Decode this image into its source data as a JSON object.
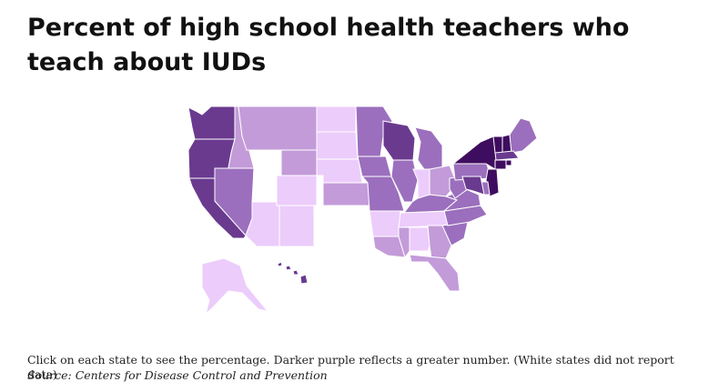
{
  "title": "Percent of high school health teachers who teach about IUDs",
  "note": "Click on each state to see the percentage. Darker purple reflects a greater number. (White states did not report data)",
  "source": "Source: Centers for Disease Control and Prevention",
  "colors": {
    "no_data": "#ffffff",
    "level1": "#ecccfb",
    "level2": "#c39bd9",
    "level3": "#9b6fbd",
    "level4": "#6a3a8f",
    "level5": "#3f0d5f",
    "border": "#ffffff"
  },
  "legend_levels": [
    {
      "level": "no_data"
    },
    {
      "level": "level1"
    },
    {
      "level": "level2"
    },
    {
      "level": "level3"
    },
    {
      "level": "level4"
    },
    {
      "level": "level5"
    }
  ],
  "states": [
    {
      "id": "WA",
      "level": "level4"
    },
    {
      "id": "OR",
      "level": "level4"
    },
    {
      "id": "CA",
      "level": "level4"
    },
    {
      "id": "ID",
      "level": "level2"
    },
    {
      "id": "NV",
      "level": "level3"
    },
    {
      "id": "MT",
      "level": "level2"
    },
    {
      "id": "WY",
      "level": "level2"
    },
    {
      "id": "UT",
      "level": "no_data"
    },
    {
      "id": "AZ",
      "level": "level1"
    },
    {
      "id": "CO",
      "level": "level1"
    },
    {
      "id": "NM",
      "level": "level1"
    },
    {
      "id": "ND",
      "level": "level1"
    },
    {
      "id": "SD",
      "level": "level1"
    },
    {
      "id": "NE",
      "level": "level1"
    },
    {
      "id": "KS",
      "level": "level2"
    },
    {
      "id": "OK",
      "level": "no_data"
    },
    {
      "id": "TX",
      "level": "no_data"
    },
    {
      "id": "MN",
      "level": "level3"
    },
    {
      "id": "IA",
      "level": "level3"
    },
    {
      "id": "MO",
      "level": "level3"
    },
    {
      "id": "AR",
      "level": "level1"
    },
    {
      "id": "LA",
      "level": "level2"
    },
    {
      "id": "WI",
      "level": "level4"
    },
    {
      "id": "IL",
      "level": "level3"
    },
    {
      "id": "MI",
      "level": "level3"
    },
    {
      "id": "IN",
      "level": "level1"
    },
    {
      "id": "OH",
      "level": "level2"
    },
    {
      "id": "KY",
      "level": "level3"
    },
    {
      "id": "TN",
      "level": "level1"
    },
    {
      "id": "MS",
      "level": "level2"
    },
    {
      "id": "AL",
      "level": "level1"
    },
    {
      "id": "GA",
      "level": "level2"
    },
    {
      "id": "FL",
      "level": "level2"
    },
    {
      "id": "SC",
      "level": "level3"
    },
    {
      "id": "NC",
      "level": "level3"
    },
    {
      "id": "VA",
      "level": "level3"
    },
    {
      "id": "WV",
      "level": "level3"
    },
    {
      "id": "PA",
      "level": "level3"
    },
    {
      "id": "NY",
      "level": "level5"
    },
    {
      "id": "VT",
      "level": "level5"
    },
    {
      "id": "NH",
      "level": "level5"
    },
    {
      "id": "ME",
      "level": "level3"
    },
    {
      "id": "MA",
      "level": "level4"
    },
    {
      "id": "RI",
      "level": "level5"
    },
    {
      "id": "CT",
      "level": "level5"
    },
    {
      "id": "NJ",
      "level": "level5"
    },
    {
      "id": "DE",
      "level": "level3"
    },
    {
      "id": "MD",
      "level": "level4"
    },
    {
      "id": "AK",
      "level": "level1"
    },
    {
      "id": "HI",
      "level": "level4"
    }
  ]
}
